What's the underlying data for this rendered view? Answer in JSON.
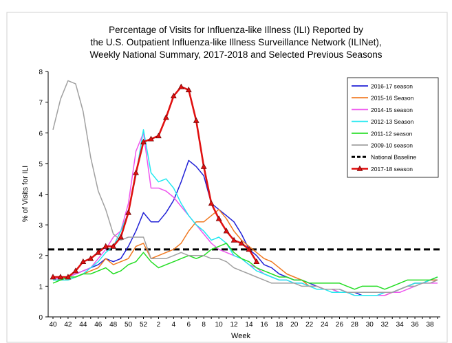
{
  "chart_data": {
    "type": "line",
    "title": [
      "Percentage of Visits for Influenza-like Illness (ILI) Reported by",
      "the U.S. Outpatient Influenza-like Illness Surveillance Network (ILINet),",
      "Weekly National Summary, 2017-2018 and Selected Previous Seasons"
    ],
    "x_label": "Week",
    "y_label": "% of Visits for ILI",
    "categories": [
      "40",
      null,
      "42",
      null,
      "44",
      null,
      "46",
      null,
      "48",
      null,
      "50",
      null,
      "52",
      null,
      "2",
      null,
      "4",
      null,
      "6",
      null,
      "8",
      null,
      "10",
      null,
      "12",
      null,
      "14",
      null,
      "16",
      null,
      "18",
      null,
      "20",
      null,
      "22",
      null,
      "24",
      null,
      "26",
      null,
      "28",
      null,
      "30",
      null,
      "32",
      null,
      "34",
      null,
      "36",
      null,
      "38",
      null
    ],
    "ylim": [
      0,
      8
    ],
    "yticks": [
      0,
      1,
      2,
      3,
      4,
      5,
      6,
      7,
      8
    ],
    "baseline": {
      "name": "National Baseline",
      "value": 2.2,
      "color": "#000000"
    },
    "series": [
      {
        "name": "2016-17 season",
        "color": "#1f1fd6",
        "values": [
          1.3,
          1.3,
          1.3,
          1.4,
          1.5,
          1.6,
          1.7,
          1.9,
          1.8,
          1.9,
          2.3,
          2.8,
          3.4,
          3.1,
          3.1,
          3.4,
          3.8,
          4.4,
          5.1,
          4.9,
          4.6,
          3.7,
          3.5,
          3.3,
          3.1,
          2.7,
          2.2,
          2.0,
          1.7,
          1.6,
          1.4,
          1.3,
          1.2,
          1.2,
          1.1,
          1.0,
          0.9,
          0.9,
          0.9,
          0.8,
          0.8,
          0.7,
          0.7,
          0.7,
          0.8,
          0.8,
          0.9,
          1.0,
          1.1,
          1.1,
          1.2,
          1.2
        ]
      },
      {
        "name": "2015-16 Season",
        "color": "#f07820",
        "values": [
          1.2,
          1.2,
          1.2,
          1.3,
          1.4,
          1.5,
          1.6,
          1.9,
          1.7,
          1.8,
          1.9,
          2.3,
          2.4,
          1.9,
          2.0,
          2.1,
          2.2,
          2.4,
          2.8,
          3.1,
          3.1,
          3.3,
          3.5,
          3.2,
          2.8,
          2.5,
          2.3,
          2.1,
          1.9,
          1.8,
          1.6,
          1.4,
          1.3,
          1.2,
          1.0,
          1.0,
          0.9,
          0.9,
          0.8,
          0.8,
          0.7,
          0.7,
          0.7,
          0.7,
          0.7,
          0.8,
          0.9,
          1.0,
          1.1,
          1.1,
          1.2,
          1.2
        ]
      },
      {
        "name": "2014-15 season",
        "color": "#ee55ee",
        "values": [
          1.2,
          1.3,
          1.3,
          1.4,
          1.5,
          1.6,
          1.9,
          2.2,
          2.6,
          2.8,
          3.7,
          5.4,
          6.0,
          4.2,
          4.2,
          4.1,
          3.9,
          3.6,
          3.3,
          3.0,
          2.7,
          2.4,
          2.2,
          2.1,
          2.0,
          1.9,
          1.7,
          1.6,
          1.4,
          1.3,
          1.2,
          1.2,
          1.1,
          1.1,
          1.0,
          1.0,
          0.9,
          0.9,
          0.8,
          0.8,
          0.7,
          0.7,
          0.7,
          0.7,
          0.7,
          0.8,
          0.8,
          0.9,
          1.0,
          1.1,
          1.1,
          1.1
        ]
      },
      {
        "name": "2012-13 Season",
        "color": "#22e8f0",
        "values": [
          1.2,
          1.2,
          1.2,
          1.3,
          1.4,
          1.6,
          1.8,
          2.1,
          2.3,
          2.8,
          3.4,
          4.6,
          6.1,
          4.7,
          4.4,
          4.5,
          4.2,
          3.7,
          3.3,
          3.0,
          2.8,
          2.5,
          2.6,
          2.4,
          2.0,
          1.9,
          1.7,
          1.5,
          1.4,
          1.3,
          1.2,
          1.2,
          1.1,
          1.1,
          1.0,
          0.9,
          0.9,
          0.8,
          0.8,
          0.8,
          0.7,
          0.7,
          0.7,
          0.7,
          0.8,
          0.8,
          0.9,
          1.0,
          1.1,
          1.1,
          1.2,
          1.3
        ]
      },
      {
        "name": "2011-12 season",
        "color": "#22dd22",
        "values": [
          1.1,
          1.2,
          1.3,
          1.3,
          1.4,
          1.4,
          1.5,
          1.6,
          1.4,
          1.5,
          1.7,
          1.8,
          2.1,
          1.8,
          1.6,
          1.7,
          1.8,
          1.9,
          2.0,
          1.9,
          2.0,
          2.2,
          2.3,
          2.4,
          2.1,
          1.9,
          1.8,
          1.6,
          1.5,
          1.4,
          1.3,
          1.3,
          1.2,
          1.2,
          1.1,
          1.1,
          1.1,
          1.1,
          1.1,
          1.0,
          0.9,
          1.0,
          1.0,
          1.0,
          0.9,
          1.0,
          1.1,
          1.2,
          1.2,
          1.2,
          1.2,
          1.3
        ]
      },
      {
        "name": "2009-10 season",
        "color": "#a0a0a0",
        "values": [
          6.1,
          7.1,
          7.7,
          7.6,
          6.7,
          5.2,
          4.1,
          3.5,
          2.7,
          2.5,
          2.6,
          2.6,
          2.6,
          1.9,
          1.9,
          1.9,
          2.0,
          2.1,
          2.0,
          2.0,
          2.0,
          1.9,
          1.9,
          1.8,
          1.6,
          1.5,
          1.4,
          1.3,
          1.2,
          1.1,
          1.1,
          1.1,
          1.1,
          1.0,
          1.0,
          1.0,
          0.9,
          0.9,
          0.9,
          0.8,
          0.8,
          0.8,
          0.8,
          0.8,
          0.8,
          0.8,
          0.9,
          1.0,
          1.0,
          1.1,
          1.1,
          1.2
        ]
      },
      {
        "name": "2017-18 season",
        "color": "#e01010",
        "marker": "triangle",
        "values": [
          1.3,
          1.3,
          1.3,
          1.5,
          1.8,
          1.9,
          2.1,
          2.3,
          2.3,
          2.6,
          3.4,
          4.7,
          5.7,
          5.8,
          5.9,
          6.5,
          7.2,
          7.5,
          7.4,
          6.4,
          4.9,
          3.7,
          3.2,
          2.8,
          2.5,
          2.4,
          2.2,
          1.8,
          null,
          null,
          null,
          null,
          null,
          null,
          null,
          null,
          null,
          null,
          null,
          null,
          null,
          null,
          null,
          null,
          null,
          null,
          null,
          null,
          null,
          null,
          null,
          null
        ]
      }
    ]
  }
}
